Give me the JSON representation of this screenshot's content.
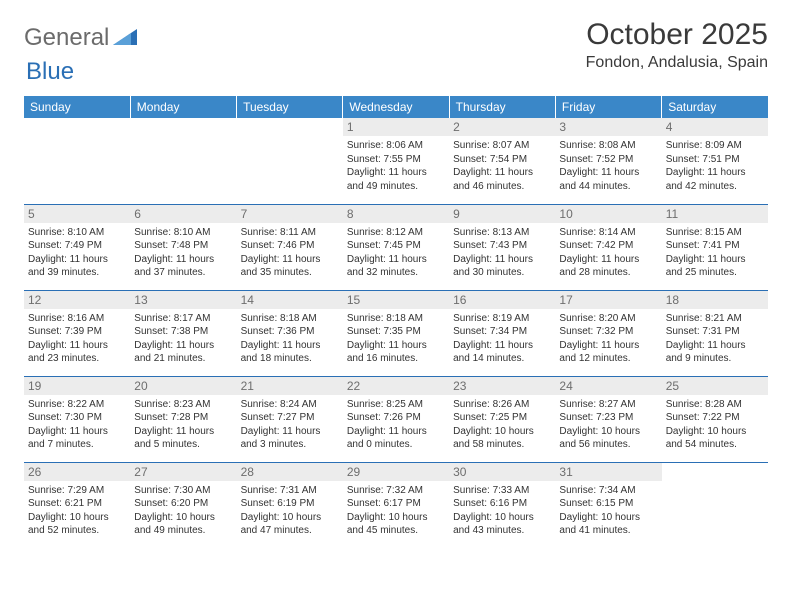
{
  "brand": {
    "general": "General",
    "blue": "Blue"
  },
  "header": {
    "month_title": "October 2025",
    "location": "Fondon, Andalusia, Spain"
  },
  "colors": {
    "header_bg": "#3a87c8",
    "header_text": "#ffffff",
    "rule": "#2a6fb5",
    "daynum_bg": "#ececec",
    "daynum_text": "#6e6e6e",
    "body_text": "#333333",
    "logo_gray": "#6b6b6b",
    "logo_blue": "#2a6fb5"
  },
  "weekdays": [
    "Sunday",
    "Monday",
    "Tuesday",
    "Wednesday",
    "Thursday",
    "Friday",
    "Saturday"
  ],
  "days": {
    "1": {
      "sunrise": "8:06 AM",
      "sunset": "7:55 PM",
      "daylight": "11 hours and 49 minutes."
    },
    "2": {
      "sunrise": "8:07 AM",
      "sunset": "7:54 PM",
      "daylight": "11 hours and 46 minutes."
    },
    "3": {
      "sunrise": "8:08 AM",
      "sunset": "7:52 PM",
      "daylight": "11 hours and 44 minutes."
    },
    "4": {
      "sunrise": "8:09 AM",
      "sunset": "7:51 PM",
      "daylight": "11 hours and 42 minutes."
    },
    "5": {
      "sunrise": "8:10 AM",
      "sunset": "7:49 PM",
      "daylight": "11 hours and 39 minutes."
    },
    "6": {
      "sunrise": "8:10 AM",
      "sunset": "7:48 PM",
      "daylight": "11 hours and 37 minutes."
    },
    "7": {
      "sunrise": "8:11 AM",
      "sunset": "7:46 PM",
      "daylight": "11 hours and 35 minutes."
    },
    "8": {
      "sunrise": "8:12 AM",
      "sunset": "7:45 PM",
      "daylight": "11 hours and 32 minutes."
    },
    "9": {
      "sunrise": "8:13 AM",
      "sunset": "7:43 PM",
      "daylight": "11 hours and 30 minutes."
    },
    "10": {
      "sunrise": "8:14 AM",
      "sunset": "7:42 PM",
      "daylight": "11 hours and 28 minutes."
    },
    "11": {
      "sunrise": "8:15 AM",
      "sunset": "7:41 PM",
      "daylight": "11 hours and 25 minutes."
    },
    "12": {
      "sunrise": "8:16 AM",
      "sunset": "7:39 PM",
      "daylight": "11 hours and 23 minutes."
    },
    "13": {
      "sunrise": "8:17 AM",
      "sunset": "7:38 PM",
      "daylight": "11 hours and 21 minutes."
    },
    "14": {
      "sunrise": "8:18 AM",
      "sunset": "7:36 PM",
      "daylight": "11 hours and 18 minutes."
    },
    "15": {
      "sunrise": "8:18 AM",
      "sunset": "7:35 PM",
      "daylight": "11 hours and 16 minutes."
    },
    "16": {
      "sunrise": "8:19 AM",
      "sunset": "7:34 PM",
      "daylight": "11 hours and 14 minutes."
    },
    "17": {
      "sunrise": "8:20 AM",
      "sunset": "7:32 PM",
      "daylight": "11 hours and 12 minutes."
    },
    "18": {
      "sunrise": "8:21 AM",
      "sunset": "7:31 PM",
      "daylight": "11 hours and 9 minutes."
    },
    "19": {
      "sunrise": "8:22 AM",
      "sunset": "7:30 PM",
      "daylight": "11 hours and 7 minutes."
    },
    "20": {
      "sunrise": "8:23 AM",
      "sunset": "7:28 PM",
      "daylight": "11 hours and 5 minutes."
    },
    "21": {
      "sunrise": "8:24 AM",
      "sunset": "7:27 PM",
      "daylight": "11 hours and 3 minutes."
    },
    "22": {
      "sunrise": "8:25 AM",
      "sunset": "7:26 PM",
      "daylight": "11 hours and 0 minutes."
    },
    "23": {
      "sunrise": "8:26 AM",
      "sunset": "7:25 PM",
      "daylight": "10 hours and 58 minutes."
    },
    "24": {
      "sunrise": "8:27 AM",
      "sunset": "7:23 PM",
      "daylight": "10 hours and 56 minutes."
    },
    "25": {
      "sunrise": "8:28 AM",
      "sunset": "7:22 PM",
      "daylight": "10 hours and 54 minutes."
    },
    "26": {
      "sunrise": "7:29 AM",
      "sunset": "6:21 PM",
      "daylight": "10 hours and 52 minutes."
    },
    "27": {
      "sunrise": "7:30 AM",
      "sunset": "6:20 PM",
      "daylight": "10 hours and 49 minutes."
    },
    "28": {
      "sunrise": "7:31 AM",
      "sunset": "6:19 PM",
      "daylight": "10 hours and 47 minutes."
    },
    "29": {
      "sunrise": "7:32 AM",
      "sunset": "6:17 PM",
      "daylight": "10 hours and 45 minutes."
    },
    "30": {
      "sunrise": "7:33 AM",
      "sunset": "6:16 PM",
      "daylight": "10 hours and 43 minutes."
    },
    "31": {
      "sunrise": "7:34 AM",
      "sunset": "6:15 PM",
      "daylight": "10 hours and 41 minutes."
    }
  },
  "labels": {
    "sunrise": "Sunrise:",
    "sunset": "Sunset:",
    "daylight": "Daylight:"
  },
  "grid": [
    [
      null,
      null,
      null,
      "1",
      "2",
      "3",
      "4"
    ],
    [
      "5",
      "6",
      "7",
      "8",
      "9",
      "10",
      "11"
    ],
    [
      "12",
      "13",
      "14",
      "15",
      "16",
      "17",
      "18"
    ],
    [
      "19",
      "20",
      "21",
      "22",
      "23",
      "24",
      "25"
    ],
    [
      "26",
      "27",
      "28",
      "29",
      "30",
      "31",
      null
    ]
  ]
}
